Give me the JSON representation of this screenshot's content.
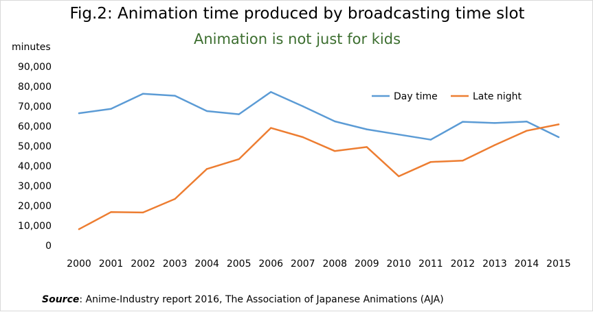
{
  "chart_data": {
    "type": "line",
    "title": "Fig.2: Animation time produced by broadcasting time slot",
    "subtitle": "Animation is not just for kids",
    "ylabel": "minutes",
    "xlabel": "",
    "x": [
      "2000",
      "2001",
      "2002",
      "2003",
      "2004",
      "2005",
      "2006",
      "2007",
      "2008",
      "2009",
      "2010",
      "2011",
      "2012",
      "2013",
      "2014",
      "2015"
    ],
    "ylim": [
      0,
      90000
    ],
    "yticks": [
      "0",
      "10,000",
      "20,000",
      "30,000",
      "40,000",
      "50,000",
      "60,000",
      "70,000",
      "80,000",
      "90,000"
    ],
    "grid": false,
    "legend_position": "top-right",
    "series": [
      {
        "name": "Day time",
        "color": "#5b9bd5",
        "values": [
          66500,
          68700,
          76300,
          75300,
          67600,
          66000,
          77200,
          70000,
          62400,
          58400,
          55800,
          53200,
          62200,
          61600,
          62300,
          54500
        ]
      },
      {
        "name": "Late night",
        "color": "#ed7d31",
        "values": [
          8200,
          16800,
          16600,
          23400,
          38500,
          43400,
          59100,
          54500,
          47500,
          49500,
          34800,
          42000,
          42700,
          50500,
          57700,
          60900
        ]
      }
    ]
  },
  "source": {
    "label": "Source",
    "text": ": Anime-Industry report 2016, The Association of Japanese Animations (AJA)"
  }
}
